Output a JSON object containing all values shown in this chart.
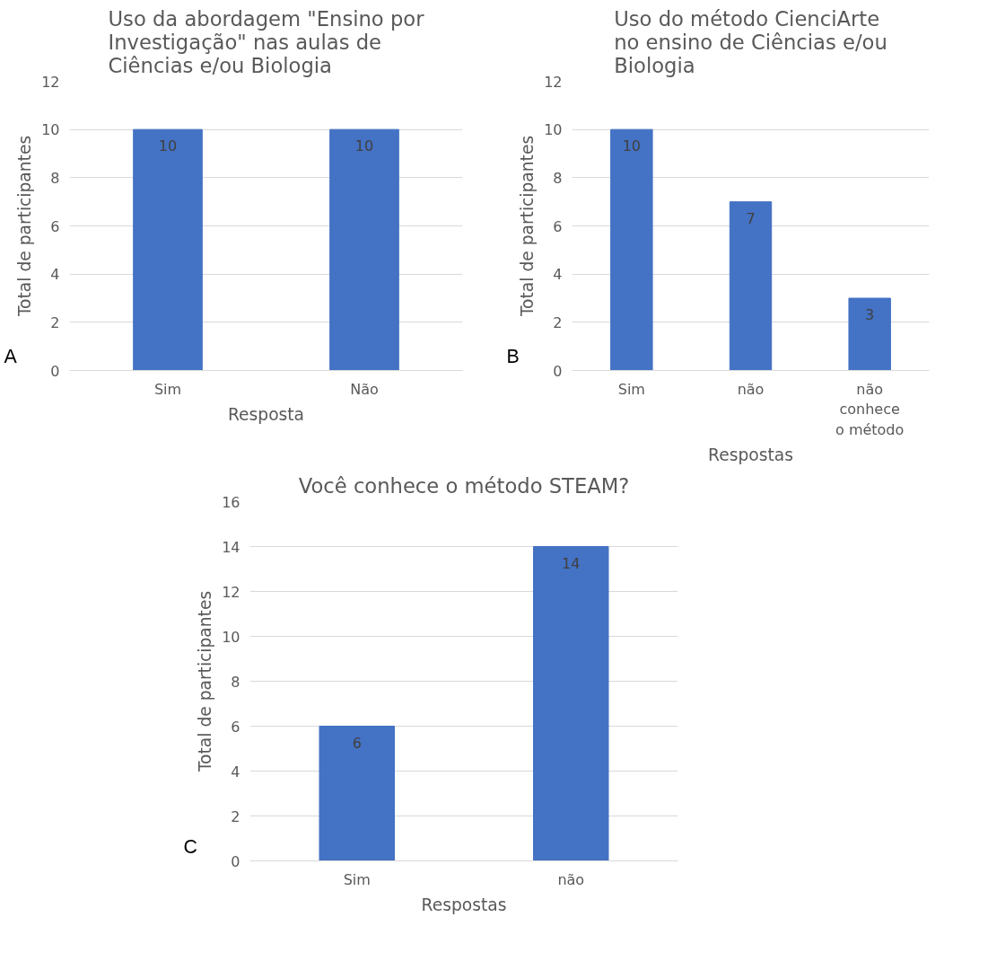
{
  "chart_data": [
    {
      "type": "bar",
      "title": "Uso da abordagem \"Ensino por Investigação\" nas aulas de Ciências e/ou Biologia",
      "xlabel": "Resposta",
      "ylabel": "Total de participantes",
      "categories": [
        "Sim",
        "Não"
      ],
      "values": [
        10,
        10
      ],
      "color": "#4472c4",
      "ylim": [
        0,
        12
      ],
      "yticks": [
        0,
        2,
        4,
        6,
        8,
        10,
        12
      ],
      "grid": "y",
      "data_labels": true,
      "annotations": [
        "A"
      ]
    },
    {
      "type": "bar",
      "title": "Uso do método CienciArte no ensino de Ciências e/ou Biologia",
      "xlabel": "Respostas",
      "ylabel": "Total de participantes",
      "categories": [
        "Sim",
        "não",
        "não conhece o método"
      ],
      "values": [
        10,
        7,
        3
      ],
      "color": "#4472c4",
      "ylim": [
        0,
        12
      ],
      "yticks": [
        0,
        2,
        4,
        6,
        8,
        10,
        12
      ],
      "grid": "y",
      "data_labels": true,
      "annotations": [
        "B"
      ]
    },
    {
      "type": "bar",
      "title": "Você conhece o método STEAM?",
      "xlabel": "Respostas",
      "ylabel": "Total de participantes",
      "categories": [
        "Sim",
        "não"
      ],
      "values": [
        6,
        14
      ],
      "color": "#4472c4",
      "ylim": [
        0,
        16
      ],
      "yticks": [
        0,
        2,
        4,
        6,
        8,
        10,
        12,
        14,
        16
      ],
      "grid": "y",
      "data_labels": true,
      "annotations": [
        "C"
      ]
    }
  ]
}
